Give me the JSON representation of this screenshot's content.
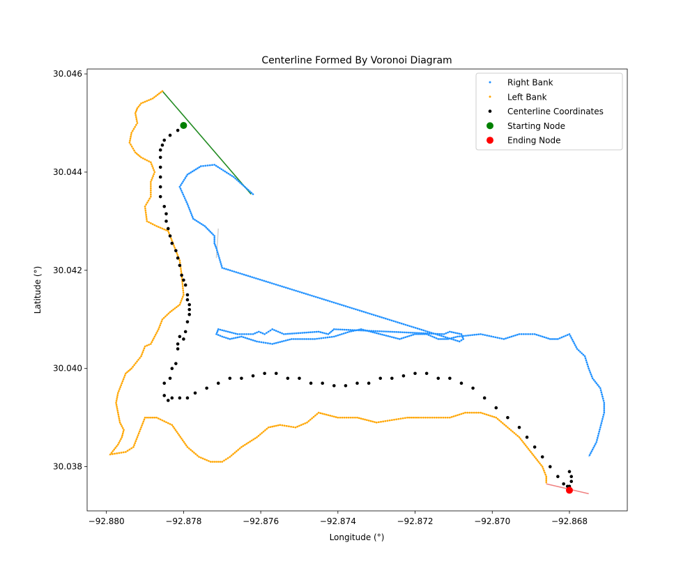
{
  "chart_data": {
    "type": "scatter",
    "title": "Centerline Formed By Voronoi Diagram",
    "xlabel": "Longitude (°)",
    "ylabel": "Latitude (°)",
    "xlim": [
      -92.8805,
      -92.8665
    ],
    "ylim": [
      30.0371,
      30.0461
    ],
    "xticks": [
      -92.88,
      -92.878,
      -92.876,
      -92.874,
      -92.872,
      -92.87,
      -92.868
    ],
    "xtick_labels": [
      "−92.880",
      "−92.878",
      "−92.876",
      "−92.874",
      "−92.872",
      "−92.870",
      "−92.868"
    ],
    "yticks": [
      30.038,
      30.04,
      30.042,
      30.044,
      30.046
    ],
    "ytick_labels": [
      "30.038",
      "30.040",
      "30.042",
      "30.044",
      "30.046"
    ],
    "grid": false,
    "legend_placement": "top-right",
    "series": [
      {
        "name": "Right Bank",
        "color": "#1E90FF",
        "kind": "points-small",
        "x": [
          -92.87625,
          -92.8765,
          -92.8768,
          -92.8771,
          -92.8774,
          -92.8776,
          -92.87765,
          -92.8779,
          -92.87805,
          -92.8781,
          -92.87805,
          -92.87795,
          -92.8778,
          -92.8775,
          -92.8772,
          -92.87735,
          -92.8774,
          -92.8771,
          -92.8769,
          -92.87705,
          -92.8771,
          -92.8709,
          -92.8708,
          -92.87075,
          -92.87075,
          -92.8709,
          -92.87125,
          -92.8716,
          -92.87215,
          -92.8732,
          -92.874,
          -92.87435,
          -92.87465,
          -92.8752,
          -92.8755,
          -92.8757,
          -92.8759,
          -92.876,
          -92.8762,
          -92.8765,
          -92.8768,
          -92.8771,
          -92.87715,
          -92.87705,
          -92.8769,
          -92.8768,
          -92.87665,
          -92.8765,
          -92.87615,
          -92.87575,
          -92.8752,
          -92.8745,
          -92.8742,
          -92.8739,
          -92.87355,
          -92.8731,
          -92.8726,
          -92.8721,
          -92.8718,
          -92.87155,
          -92.87125,
          -92.871,
          -92.87085,
          -92.8705,
          -92.8698,
          -92.8696,
          -92.8692,
          -92.8688,
          -92.8683,
          -92.8682,
          -92.8679,
          -92.8678,
          -92.86775,
          -92.8676,
          -92.86745,
          -92.86725,
          -92.8672,
          -92.8671,
          -92.8671,
          -92.86725,
          -92.8674
        ],
        "y": [
          30.04355,
          30.0438,
          30.04398,
          30.0441,
          30.04418,
          30.04408,
          30.0439,
          30.0437,
          30.0435,
          30.0433,
          30.0431,
          30.0429,
          30.0428,
          30.0426,
          30.0423,
          30.042,
          30.0417,
          30.0414,
          30.0411,
          30.0408,
          30.04055,
          30.04075,
          30.0406,
          30.0405,
          30.0404,
          30.04045,
          30.04055,
          30.04065,
          30.0408,
          30.04077,
          30.0407,
          30.0407,
          30.04065,
          30.0406,
          30.0406,
          30.04065,
          30.0406,
          30.0406,
          30.0407,
          30.04065,
          30.0408,
          30.0409,
          30.0407,
          30.0404,
          30.0402,
          30.04,
          30.0398,
          30.0396,
          30.0394,
          30.0392,
          30.039,
          30.0388,
          30.0386,
          30.0384,
          30.0382,
          30.038,
          30.0378,
          30.0376,
          30.0375,
          30.03745,
          30.0375,
          30.0377,
          30.0379,
          30.0381,
          30.0383,
          30.0385,
          30.0387,
          30.0389,
          30.039,
          30.0392,
          30.0394,
          30.0396,
          30.0398,
          30.0399,
          30.04,
          30.0401,
          30.0402,
          30.0403,
          30.0404,
          30.0405,
          30.0406
        ],
        "path_x": [
          -92.8762,
          -92.8767,
          -92.8772,
          -92.87755,
          -92.8779,
          -92.8781,
          -92.8779,
          -92.87775,
          -92.87745,
          -92.8772,
          -92.8772,
          -92.87715,
          -92.877,
          -92.87085,
          -92.87075,
          -92.8708,
          -92.8711,
          -92.87125,
          -92.8741,
          -92.87425,
          -92.8745,
          -92.8754,
          -92.8757,
          -92.8759,
          -92.87605,
          -92.8762,
          -92.8766,
          -92.8771,
          -92.87715,
          -92.877,
          -92.8768,
          -92.8765,
          -92.8761,
          -92.8757,
          -92.8752,
          -92.8746,
          -92.8741,
          -92.8737,
          -92.8734,
          -92.8729,
          -92.8724,
          -92.872,
          -92.8717,
          -92.8714,
          -92.87115,
          -92.8709,
          -92.8703,
          -92.8697,
          -92.8693,
          -92.8689,
          -92.8685,
          -92.8683,
          -92.868,
          -92.8678,
          -92.8676,
          -92.8675,
          -92.8674,
          -92.8672,
          -92.8671,
          -92.8671,
          -92.8672,
          -92.8673,
          -92.8675
        ],
        "path_y": [
          30.04355,
          30.0439,
          30.04415,
          30.04412,
          30.04395,
          30.0437,
          30.04335,
          30.04305,
          30.0429,
          30.0427,
          30.04255,
          30.04245,
          30.04205,
          30.04055,
          30.0406,
          30.0407,
          30.04075,
          30.0407,
          30.0408,
          30.0407,
          30.04075,
          30.0407,
          30.0408,
          30.0407,
          30.04075,
          30.0407,
          30.0407,
          30.0408,
          30.0407,
          30.04065,
          30.0406,
          30.04065,
          30.04055,
          30.0405,
          30.0406,
          30.0406,
          30.04065,
          30.04075,
          30.0408,
          30.0407,
          30.0406,
          30.0407,
          30.0407,
          30.0406,
          30.0406,
          30.04065,
          30.0407,
          30.0406,
          30.0407,
          30.0407,
          30.0406,
          30.0406,
          30.0407,
          30.0404,
          30.04025,
          30.04,
          30.0398,
          30.0396,
          30.0393,
          30.0391,
          30.0388,
          30.0385,
          30.0382,
          30.0379,
          30.0377,
          30.03755,
          30.03745
        ]
      },
      {
        "name": "Left Bank",
        "color": "#FFA500",
        "kind": "points-small",
        "path_x": [
          -92.87855,
          -92.8788,
          -92.8791,
          -92.8792,
          -92.87925,
          -92.8792,
          -92.87935,
          -92.8794,
          -92.87925,
          -92.8791,
          -92.87885,
          -92.87875,
          -92.87885,
          -92.87885,
          -92.879,
          -92.87895,
          -92.8787,
          -92.8784,
          -92.87825,
          -92.8781,
          -92.87805,
          -92.878,
          -92.8781,
          -92.87835,
          -92.87855,
          -92.87865,
          -92.87875,
          -92.87885,
          -92.879,
          -92.8791,
          -92.87935,
          -92.8795,
          -92.8796,
          -92.8797,
          -92.87975,
          -92.8797,
          -92.87965,
          -92.87955,
          -92.8796,
          -92.8797,
          -92.8799,
          -92.8795,
          -92.8793,
          -92.8792,
          -92.8791,
          -92.879,
          -92.8787,
          -92.8783,
          -92.8779,
          -92.8776,
          -92.8773,
          -92.877,
          -92.8768,
          -92.8765,
          -92.8761,
          -92.8758,
          -92.8755,
          -92.8751,
          -92.8748,
          -92.8745,
          -92.874,
          -92.8735,
          -92.873,
          -92.8726,
          -92.8722,
          -92.8719,
          -92.8715,
          -92.8711,
          -92.8707,
          -92.8703,
          -92.8699,
          -92.8696,
          -92.8693,
          -92.8691,
          -92.8689,
          -92.8687,
          -92.8686,
          -92.8686
        ],
        "path_y": [
          30.04565,
          30.0455,
          30.0454,
          30.0453,
          30.0452,
          30.045,
          30.0448,
          30.0446,
          30.0444,
          30.0443,
          30.0442,
          30.044,
          30.0438,
          30.0435,
          30.0433,
          30.043,
          30.0429,
          30.0428,
          30.0425,
          30.0422,
          30.0419,
          30.0415,
          30.0413,
          30.04115,
          30.041,
          30.0408,
          30.04065,
          30.0405,
          30.04045,
          30.04025,
          30.04,
          30.0399,
          30.0397,
          30.0395,
          30.0393,
          30.0391,
          30.0389,
          30.03875,
          30.0386,
          30.03845,
          30.03825,
          30.0383,
          30.0384,
          30.0386,
          30.0388,
          30.039,
          30.039,
          30.03885,
          30.0384,
          30.0382,
          30.0381,
          30.0381,
          30.0382,
          30.0384,
          30.0386,
          30.0388,
          30.03885,
          30.0388,
          30.0389,
          30.0391,
          30.039,
          30.039,
          30.0389,
          30.03895,
          30.039,
          30.039,
          30.039,
          30.039,
          30.0391,
          30.0391,
          30.039,
          30.0388,
          30.0386,
          30.0384,
          30.0382,
          30.038,
          30.0378,
          30.03765
        ]
      },
      {
        "name": "Centerline Coordinates",
        "color": "#000000",
        "kind": "points",
        "x": [
          -92.87815,
          -92.87835,
          -92.8785,
          -92.87855,
          -92.8786,
          -92.8786,
          -92.8786,
          -92.8786,
          -92.8786,
          -92.8786,
          -92.8785,
          -92.87845,
          -92.87845,
          -92.8784,
          -92.87835,
          -92.8783,
          -92.8782,
          -92.87815,
          -92.8781,
          -92.87805,
          -92.878,
          -92.87795,
          -92.8779,
          -92.8779,
          -92.87785,
          -92.87785,
          -92.87785,
          -92.8779,
          -92.87795,
          -92.878,
          -92.8781,
          -92.87815,
          -92.87815,
          -92.8782,
          -92.8783,
          -92.87835,
          -92.8785,
          -92.8785,
          -92.8784,
          -92.8783,
          -92.8781,
          -92.8779,
          -92.8777,
          -92.8774,
          -92.8771,
          -92.8768,
          -92.8765,
          -92.8762,
          -92.8759,
          -92.8756,
          -92.8753,
          -92.875,
          -92.8747,
          -92.8744,
          -92.8741,
          -92.8738,
          -92.8735,
          -92.8732,
          -92.8729,
          -92.8726,
          -92.8723,
          -92.872,
          -92.8717,
          -92.8714,
          -92.8711,
          -92.8708,
          -92.8705,
          -92.8702,
          -92.8699,
          -92.8696,
          -92.8693,
          -92.8691,
          -92.8689,
          -92.8687,
          -92.8685,
          -92.8683,
          -92.86815,
          -92.86805,
          -92.868,
          -92.86795,
          -92.86795,
          -92.868
        ],
        "y": [
          30.04485,
          30.04475,
          30.04465,
          30.04455,
          30.04445,
          30.0443,
          30.0441,
          30.0439,
          30.0437,
          30.0435,
          30.0433,
          30.04315,
          30.043,
          30.04285,
          30.0427,
          30.04255,
          30.0424,
          30.04225,
          30.0421,
          30.0419,
          30.0418,
          30.0417,
          30.0415,
          30.0414,
          30.0413,
          30.0412,
          30.0411,
          30.04095,
          30.04075,
          30.0406,
          30.04065,
          30.0405,
          30.0404,
          30.0401,
          30.04,
          30.0398,
          30.0397,
          30.03945,
          30.03935,
          30.0394,
          30.0394,
          30.0394,
          30.0395,
          30.0396,
          30.0397,
          30.0398,
          30.0398,
          30.03985,
          30.0399,
          30.0399,
          30.0398,
          30.0398,
          30.0397,
          30.0397,
          30.03965,
          30.03965,
          30.0397,
          30.0397,
          30.0398,
          30.0398,
          30.03985,
          30.0399,
          30.0399,
          30.0398,
          30.0398,
          30.0397,
          30.0396,
          30.0394,
          30.0392,
          30.039,
          30.0388,
          30.0386,
          30.0384,
          30.0382,
          30.038,
          30.0378,
          30.03765,
          30.0376,
          30.0376,
          30.0377,
          30.0378,
          30.0379
        ]
      },
      {
        "name": "Starting Node",
        "color": "#008000",
        "kind": "marker",
        "x": [
          -92.878
        ],
        "y": [
          30.04495
        ]
      },
      {
        "name": "Ending Node",
        "color": "#FF0000",
        "kind": "marker",
        "x": [
          -92.868
        ],
        "y": [
          30.03752
        ]
      }
    ],
    "lines": [
      {
        "color": "#228B22",
        "x": [
          -92.87855,
          -92.87625
        ],
        "y": [
          30.04565,
          30.04355
        ]
      },
      {
        "color": "#F08080",
        "x": [
          -92.8686,
          -92.8675
        ],
        "y": [
          30.03765,
          30.03745
        ]
      },
      {
        "color": "#D3D3D3",
        "x": [
          -92.8771,
          -92.87715
        ],
        "y": [
          30.04285,
          30.04225
        ]
      }
    ]
  }
}
